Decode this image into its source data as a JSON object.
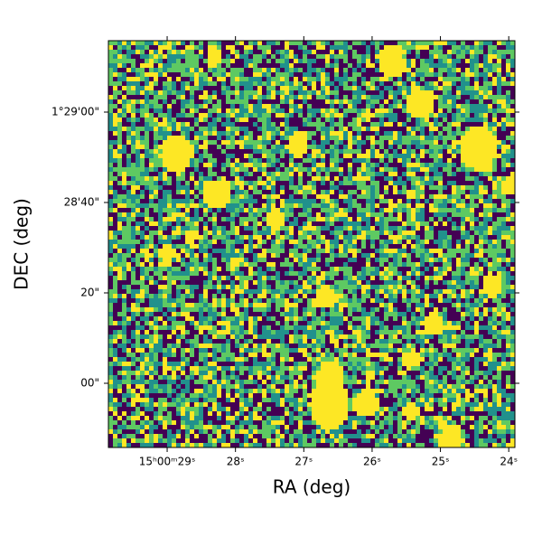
{
  "chart_data": {
    "type": "image",
    "xlabel": "RA (deg)",
    "ylabel": "DEC (deg)",
    "xlim": [
      29.86,
      23.91
    ],
    "xticks": [
      {
        "value": 29,
        "label": "15ʰ00ᵐ29ˢ"
      },
      {
        "value": 28,
        "label": "28ˢ"
      },
      {
        "value": 27,
        "label": "27ˢ"
      },
      {
        "value": 26,
        "label": "26ˢ"
      },
      {
        "value": 25,
        "label": "25ˢ"
      },
      {
        "value": 24,
        "label": "24ˢ"
      }
    ],
    "ylim": [
      -14.2,
      75.8
    ],
    "yticks": [
      {
        "value": 0,
        "label": "00\""
      },
      {
        "value": 20,
        "label": "20\""
      },
      {
        "value": 40,
        "label": "28'40\""
      },
      {
        "value": 60,
        "label": "1°29'00\""
      }
    ],
    "colors": [
      "#440154",
      "#21918c",
      "#5ec962",
      "#fde725"
    ]
  }
}
